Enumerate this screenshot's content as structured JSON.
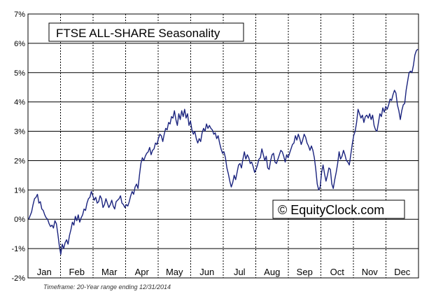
{
  "chart_data": {
    "type": "line",
    "title": "FTSE ALL-SHARE Seasonality",
    "watermark": "© EquityClock.com",
    "footnote": "Timeframe: 20-Year range ending 12/31/2014",
    "xlabel": "",
    "ylabel": "",
    "ylim": [
      -2,
      7
    ],
    "y_ticks": [
      "-2%",
      "-1%",
      "0%",
      "1%",
      "2%",
      "3%",
      "4%",
      "5%",
      "6%",
      "7%"
    ],
    "month_labels": [
      "Jan",
      "Feb",
      "Mar",
      "Apr",
      "May",
      "Jun",
      "Jul",
      "Aug",
      "Sep",
      "Oct",
      "Nov",
      "Dec"
    ],
    "grid": true,
    "line_color": "#1a237e",
    "series": [
      {
        "values": [
          [
            0,
            0
          ],
          [
            2,
            0.25
          ],
          [
            3,
            0.5
          ],
          [
            4,
            0.7
          ],
          [
            5,
            0.75
          ],
          [
            6,
            0.85
          ],
          [
            7,
            0.55
          ],
          [
            8,
            0.6
          ],
          [
            9,
            0.35
          ],
          [
            10,
            0.3
          ],
          [
            11,
            0.15
          ],
          [
            12,
            0.05
          ],
          [
            13,
            0.0
          ],
          [
            14,
            -0.15
          ],
          [
            15,
            -0.25
          ],
          [
            16,
            -0.2
          ],
          [
            17,
            -0.3
          ],
          [
            18,
            -0.05
          ],
          [
            19,
            -0.15
          ],
          [
            20,
            -0.5
          ],
          [
            21,
            -0.9
          ],
          [
            22,
            -1.2
          ],
          [
            23,
            -0.85
          ],
          [
            24,
            -1.0
          ],
          [
            25,
            -0.8
          ],
          [
            26,
            -0.7
          ],
          [
            27,
            -0.85
          ],
          [
            28,
            -0.55
          ],
          [
            29,
            -0.35
          ],
          [
            30,
            -0.1
          ],
          [
            31,
            -0.2
          ],
          [
            32,
            0.1
          ],
          [
            33,
            -0.05
          ],
          [
            34,
            0.15
          ],
          [
            35,
            -0.1
          ],
          [
            36,
            0.05
          ],
          [
            37,
            0.15
          ],
          [
            38,
            0.35
          ],
          [
            39,
            0.3
          ],
          [
            40,
            0.55
          ],
          [
            41,
            0.7
          ],
          [
            42,
            0.75
          ],
          [
            43,
            0.95
          ],
          [
            44,
            0.8
          ],
          [
            45,
            0.65
          ],
          [
            46,
            0.75
          ],
          [
            47,
            0.55
          ],
          [
            48,
            0.6
          ],
          [
            49,
            0.8
          ],
          [
            50,
            0.7
          ],
          [
            51,
            0.4
          ],
          [
            52,
            0.5
          ],
          [
            53,
            0.7
          ],
          [
            54,
            0.55
          ],
          [
            55,
            0.4
          ],
          [
            56,
            0.5
          ],
          [
            57,
            0.65
          ],
          [
            58,
            0.45
          ],
          [
            59,
            0.35
          ],
          [
            60,
            0.6
          ],
          [
            61,
            0.65
          ],
          [
            62,
            0.7
          ],
          [
            63,
            0.8
          ],
          [
            64,
            0.55
          ],
          [
            65,
            0.5
          ],
          [
            66,
            0.4
          ],
          [
            67,
            0.5
          ],
          [
            68,
            0.45
          ],
          [
            69,
            0.6
          ],
          [
            70,
            0.8
          ],
          [
            71,
            0.95
          ],
          [
            72,
            0.85
          ],
          [
            73,
            1.1
          ],
          [
            74,
            1.2
          ],
          [
            75,
            1.05
          ],
          [
            76,
            1.5
          ],
          [
            77,
            1.9
          ],
          [
            78,
            2.1
          ],
          [
            79,
            2.0
          ],
          [
            80,
            2.15
          ],
          [
            81,
            2.25
          ],
          [
            82,
            2.3
          ],
          [
            83,
            2.45
          ],
          [
            84,
            2.2
          ],
          [
            85,
            2.35
          ],
          [
            86,
            2.4
          ],
          [
            87,
            2.6
          ],
          [
            88,
            2.55
          ],
          [
            89,
            2.75
          ],
          [
            90,
            2.9
          ],
          [
            91,
            2.85
          ],
          [
            92,
            2.65
          ],
          [
            93,
            2.9
          ],
          [
            94,
            3.1
          ],
          [
            95,
            3.05
          ],
          [
            96,
            3.3
          ],
          [
            97,
            3.25
          ],
          [
            98,
            3.5
          ],
          [
            99,
            3.45
          ],
          [
            100,
            3.7
          ],
          [
            101,
            3.4
          ],
          [
            102,
            3.2
          ],
          [
            103,
            3.6
          ],
          [
            104,
            3.4
          ],
          [
            105,
            3.7
          ],
          [
            106,
            3.5
          ],
          [
            107,
            3.75
          ],
          [
            108,
            3.45
          ],
          [
            109,
            3.6
          ],
          [
            110,
            3.2
          ],
          [
            111,
            3.35
          ],
          [
            112,
            3.05
          ],
          [
            113,
            2.9
          ],
          [
            114,
            3.0
          ],
          [
            115,
            2.75
          ],
          [
            116,
            2.6
          ],
          [
            117,
            2.75
          ],
          [
            118,
            2.65
          ],
          [
            119,
            2.95
          ],
          [
            120,
            3.1
          ],
          [
            121,
            3.0
          ],
          [
            122,
            3.25
          ],
          [
            123,
            3.1
          ],
          [
            124,
            3.2
          ],
          [
            125,
            3.1
          ],
          [
            126,
            3.05
          ],
          [
            127,
            2.9
          ],
          [
            128,
            2.95
          ],
          [
            129,
            2.75
          ],
          [
            130,
            2.85
          ],
          [
            131,
            2.6
          ],
          [
            132,
            2.4
          ],
          [
            133,
            2.25
          ],
          [
            134,
            2.3
          ],
          [
            135,
            2.1
          ],
          [
            136,
            1.75
          ],
          [
            137,
            1.55
          ],
          [
            138,
            1.3
          ],
          [
            139,
            1.1
          ],
          [
            140,
            1.25
          ],
          [
            141,
            1.5
          ],
          [
            142,
            1.35
          ],
          [
            143,
            1.6
          ],
          [
            144,
            1.85
          ],
          [
            145,
            1.9
          ],
          [
            146,
            1.75
          ],
          [
            147,
            2.05
          ],
          [
            148,
            2.3
          ],
          [
            149,
            2.05
          ],
          [
            150,
            2.2
          ],
          [
            151,
            2.1
          ],
          [
            152,
            1.9
          ],
          [
            153,
            1.95
          ],
          [
            154,
            1.8
          ],
          [
            155,
            1.6
          ],
          [
            156,
            1.7
          ],
          [
            157,
            1.85
          ],
          [
            158,
            2.05
          ],
          [
            159,
            2.1
          ],
          [
            160,
            2.4
          ],
          [
            161,
            2.2
          ],
          [
            162,
            2.0
          ],
          [
            163,
            2.15
          ],
          [
            164,
            1.75
          ],
          [
            165,
            1.7
          ],
          [
            166,
            2.0
          ],
          [
            167,
            2.2
          ],
          [
            168,
            2.25
          ],
          [
            169,
            1.95
          ],
          [
            170,
            1.9
          ],
          [
            171,
            2.05
          ],
          [
            172,
            2.2
          ],
          [
            173,
            2.35
          ],
          [
            174,
            2.3
          ],
          [
            175,
            2.15
          ],
          [
            176,
            1.95
          ],
          [
            177,
            2.2
          ],
          [
            178,
            2.1
          ],
          [
            179,
            2.25
          ],
          [
            180,
            2.4
          ],
          [
            181,
            2.55
          ],
          [
            182,
            2.6
          ],
          [
            183,
            2.85
          ],
          [
            184,
            2.7
          ],
          [
            185,
            2.9
          ],
          [
            186,
            2.75
          ],
          [
            187,
            2.55
          ],
          [
            188,
            2.7
          ],
          [
            189,
            2.9
          ],
          [
            190,
            2.8
          ],
          [
            191,
            2.6
          ],
          [
            192,
            2.5
          ],
          [
            193,
            2.35
          ],
          [
            194,
            2.5
          ],
          [
            195,
            2.35
          ],
          [
            196,
            2.1
          ],
          [
            197,
            1.7
          ],
          [
            198,
            1.2
          ],
          [
            199,
            1.0
          ],
          [
            200,
            1.1
          ],
          [
            201,
            1.6
          ],
          [
            202,
            1.85
          ],
          [
            203,
            1.55
          ],
          [
            204,
            1.3
          ],
          [
            205,
            1.5
          ],
          [
            206,
            1.75
          ],
          [
            207,
            1.7
          ],
          [
            208,
            1.2
          ],
          [
            209,
            1.05
          ],
          [
            210,
            1.35
          ],
          [
            211,
            1.6
          ],
          [
            212,
            1.9
          ],
          [
            213,
            2.3
          ],
          [
            214,
            2.05
          ],
          [
            215,
            2.15
          ],
          [
            216,
            2.35
          ],
          [
            217,
            2.2
          ],
          [
            218,
            2.0
          ],
          [
            219,
            1.95
          ],
          [
            220,
            1.85
          ],
          [
            221,
            2.2
          ],
          [
            222,
            2.55
          ],
          [
            223,
            2.85
          ],
          [
            224,
            3.0
          ],
          [
            225,
            3.3
          ],
          [
            226,
            3.75
          ],
          [
            227,
            3.6
          ],
          [
            228,
            3.45
          ],
          [
            229,
            3.55
          ],
          [
            230,
            3.3
          ],
          [
            231,
            3.5
          ],
          [
            232,
            3.55
          ],
          [
            233,
            3.45
          ],
          [
            234,
            3.6
          ],
          [
            235,
            3.4
          ],
          [
            236,
            3.55
          ],
          [
            237,
            3.2
          ],
          [
            238,
            3.05
          ],
          [
            239,
            3.0
          ],
          [
            240,
            3.3
          ],
          [
            241,
            3.6
          ],
          [
            242,
            3.5
          ],
          [
            243,
            3.8
          ],
          [
            244,
            3.65
          ],
          [
            245,
            3.85
          ],
          [
            246,
            3.75
          ],
          [
            247,
            3.9
          ],
          [
            248,
            4.1
          ],
          [
            249,
            4.05
          ],
          [
            250,
            4.25
          ],
          [
            251,
            4.4
          ],
          [
            252,
            4.3
          ],
          [
            253,
            3.9
          ],
          [
            254,
            3.7
          ],
          [
            255,
            3.4
          ],
          [
            256,
            3.7
          ],
          [
            257,
            3.9
          ],
          [
            258,
            3.95
          ],
          [
            259,
            4.4
          ],
          [
            260,
            4.7
          ],
          [
            261,
            5.0
          ],
          [
            262,
            5.05
          ],
          [
            263,
            5.0
          ],
          [
            264,
            5.25
          ],
          [
            265,
            5.6
          ],
          [
            266,
            5.75
          ],
          [
            267,
            5.8
          ]
        ]
      }
    ]
  }
}
